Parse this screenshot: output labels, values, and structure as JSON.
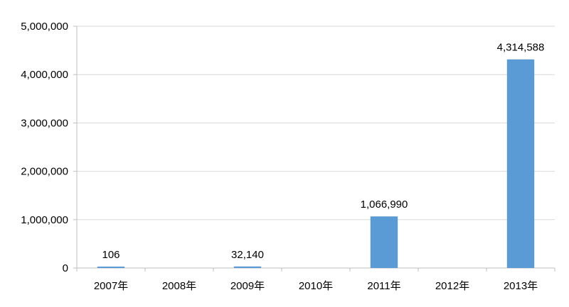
{
  "chart_data": {
    "type": "bar",
    "categories": [
      "2007年",
      "2008年",
      "2009年",
      "2010年",
      "2011年",
      "2012年",
      "2013年"
    ],
    "values": [
      106,
      null,
      32140,
      null,
      1066990,
      null,
      4314588
    ],
    "data_labels": [
      "106",
      "",
      "32,140",
      "",
      "1,066,990",
      "",
      "4,314,588"
    ],
    "yticks": [
      "0",
      "1,000,000",
      "2,000,000",
      "3,000,000",
      "4,000,000",
      "5,000,000"
    ],
    "ylim": [
      0,
      5000000
    ],
    "grid": true,
    "bar_color": "#5b9bd5",
    "grid_color": "#d9d9d9",
    "axis_color": "#bfbfbf"
  }
}
